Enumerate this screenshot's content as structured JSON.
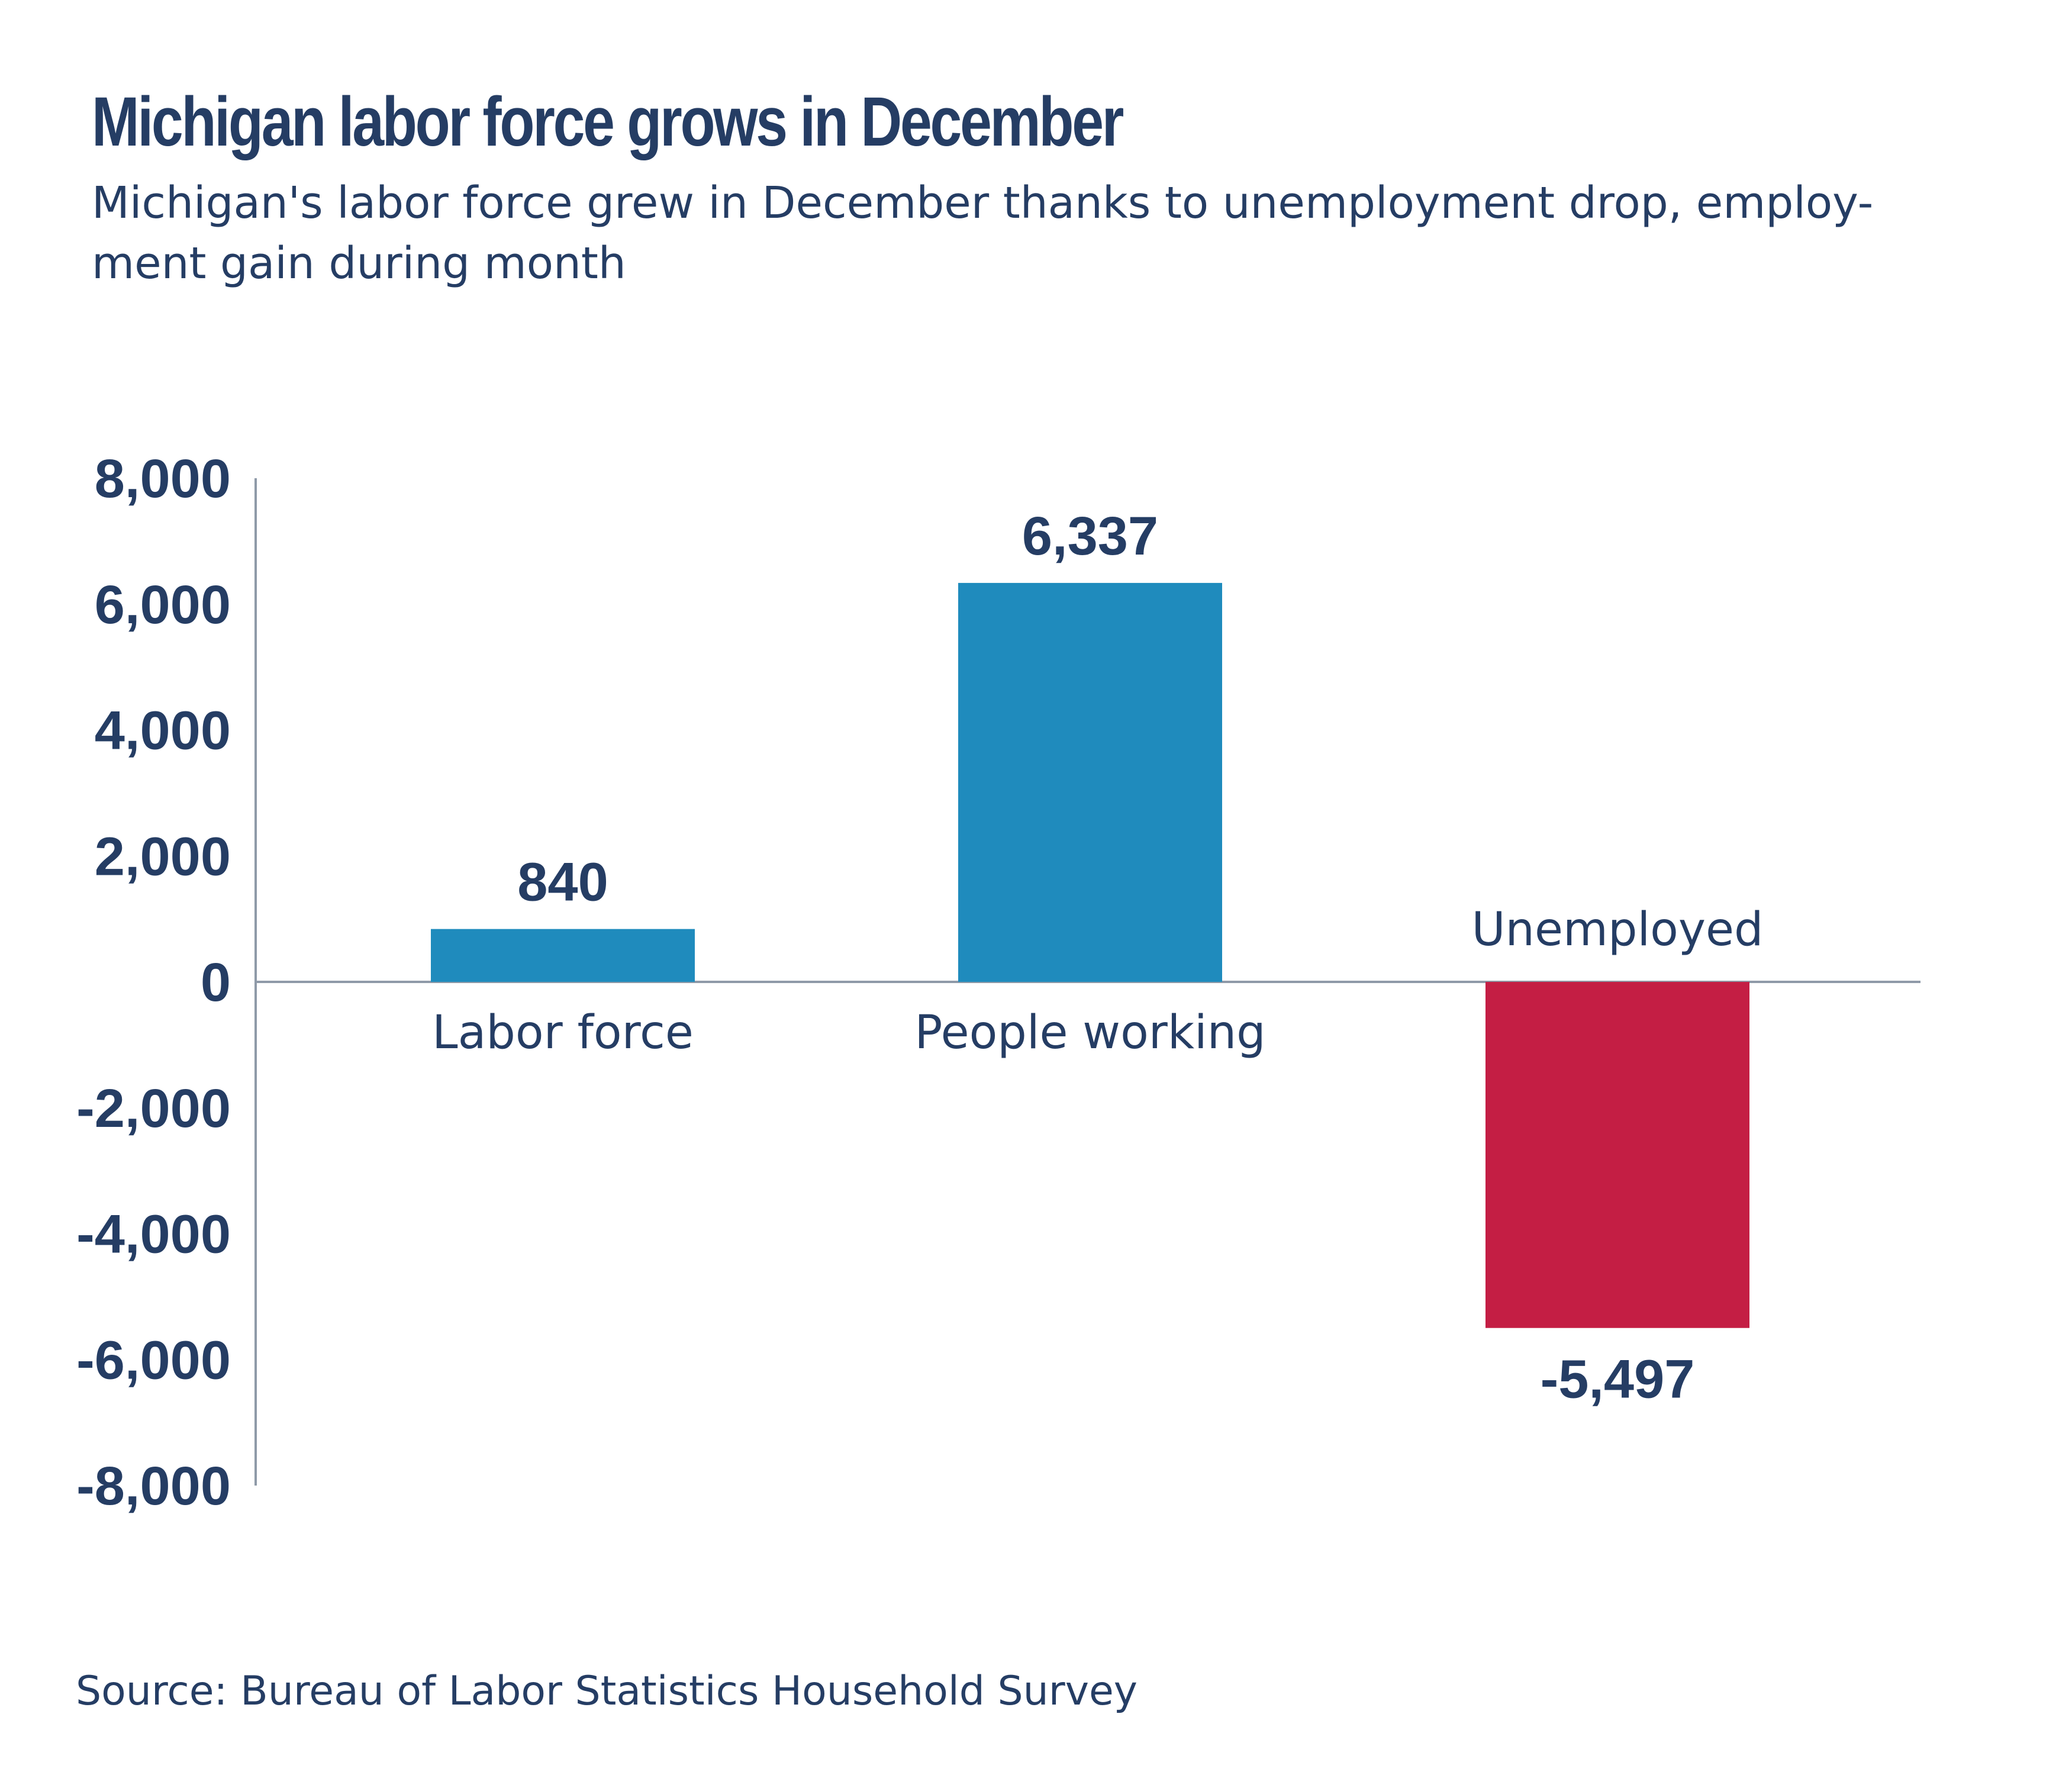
{
  "header": {
    "title": "Michigan labor force grows in December",
    "subtitle": "Michigan's labor force grew in December thanks to unemployment drop, employ-ment gain during month"
  },
  "footer": {
    "source": "Source: Bureau of Labor Statistics Household Survey"
  },
  "colors": {
    "text": "#253d64",
    "positive_bar": "#1f8bbd",
    "negative_bar": "#c41e44",
    "axis": "#8f9aa8"
  },
  "chart_data": {
    "type": "bar",
    "title": "Michigan labor force grows in December",
    "subtitle": "Michigan's labor force grew in December thanks to unemployment drop, employ-ment gain during month",
    "categories": [
      "Labor force",
      "People working",
      "Unemployed"
    ],
    "values": [
      840,
      6337,
      -5497
    ],
    "value_labels": [
      "840",
      "6,337",
      "-5,497"
    ],
    "ylim": [
      -8000,
      8000
    ],
    "yticks": [
      8000,
      6000,
      4000,
      2000,
      0,
      -2000,
      -4000,
      -6000,
      -8000
    ],
    "ytick_labels": [
      "8,000",
      "6,000",
      "4,000",
      "2,000",
      "0",
      "-2,000",
      "-4,000",
      "-6,000",
      "-8,000"
    ],
    "xlabel": "",
    "ylabel": "",
    "grid": false,
    "legend": "none"
  }
}
